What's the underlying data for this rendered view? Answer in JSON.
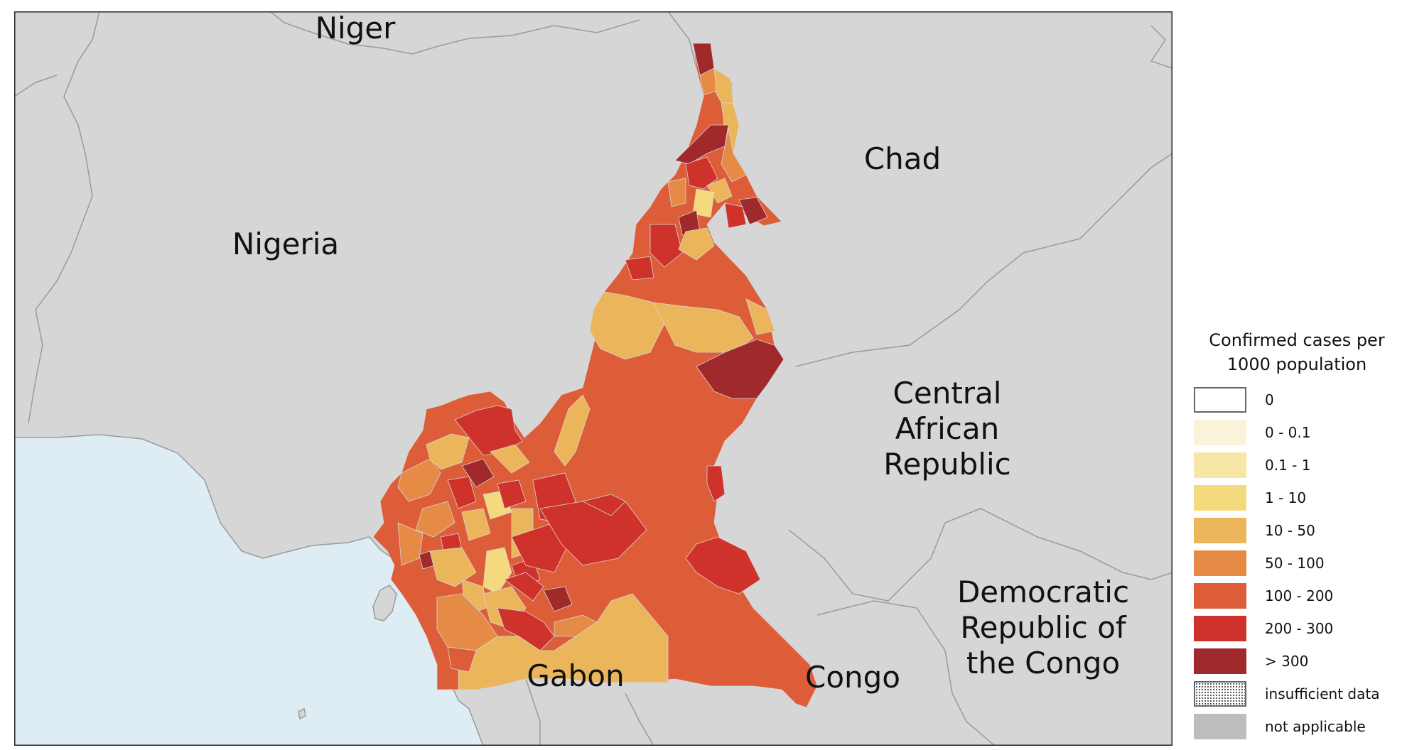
{
  "map": {
    "colors": {
      "land": "#d6d6d6",
      "water": "#deedf3",
      "border": "#9a9a9a"
    },
    "labels": {
      "niger": "Niger",
      "chad": "Chad",
      "nigeria": "Nigeria",
      "car_line1": "Central",
      "car_line2": "African",
      "car_line3": "Republic",
      "drc_line1": "Democratic",
      "drc_line2": "Republic of",
      "drc_line3": "the Congo",
      "gabon": "Gabon",
      "congo": "Congo"
    }
  },
  "legend": {
    "title_line1": "Confirmed cases per",
    "title_line2": "1000 population",
    "items": [
      {
        "label": "0",
        "color": "#ffffff"
      },
      {
        "label": "0 - 0.1",
        "color": "#fbf3d9"
      },
      {
        "label": "0.1 - 1",
        "color": "#f7e7a6"
      },
      {
        "label": "1 - 10",
        "color": "#f4da7c"
      },
      {
        "label": "10 - 50",
        "color": "#ebb55b"
      },
      {
        "label": "50 - 100",
        "color": "#e58b45"
      },
      {
        "label": "100 - 200",
        "color": "#dd5d38"
      },
      {
        "label": "200 - 300",
        "color": "#cf322b"
      },
      {
        "label": "> 300",
        "color": "#a0292b"
      },
      {
        "label": "insufficient data",
        "color": "#ffffff"
      },
      {
        "label": "not applicable",
        "color": "#bdbdbd"
      }
    ]
  }
}
